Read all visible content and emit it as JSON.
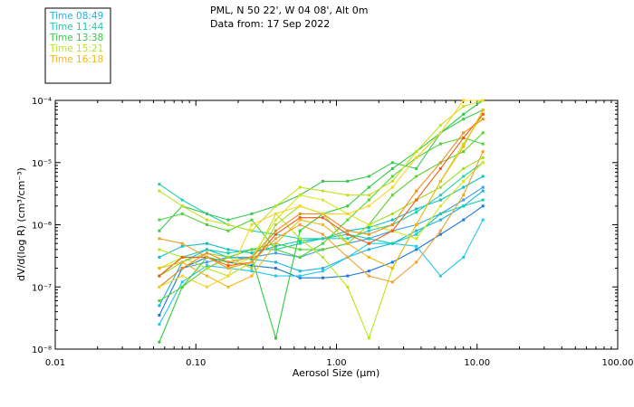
{
  "header": {
    "location": "PML, N 50 22', W 04 08', Alt 0m",
    "date": "Data from: 17 Sep 2022"
  },
  "legend": [
    {
      "label": "Time 08:49",
      "color": "#19b4e6"
    },
    {
      "label": "Time 11:44",
      "color": "#15cfaa"
    },
    {
      "label": "Time 13:38",
      "color": "#2ecc40"
    },
    {
      "label": "Time 15:21",
      "color": "#b8e61c"
    },
    {
      "label": "Time 16:18",
      "color": "#f6b512"
    }
  ],
  "chart_data": {
    "type": "line",
    "title": "",
    "xlabel": "Aerosol Size (µm)",
    "ylabel": "dV/d(log R) (cm³/cm⁻³)",
    "xscale": "log",
    "yscale": "log",
    "xlim": [
      0.01,
      100
    ],
    "ylim": [
      1e-08,
      0.0001
    ],
    "xticks": [
      0.01,
      0.1,
      1,
      10,
      100
    ],
    "xtick_labels": [
      "0.01",
      "0.10",
      "1.00",
      "10.00",
      "100.00"
    ],
    "yticks": [
      1e-08,
      1e-07,
      1e-06,
      1e-05,
      0.0001
    ],
    "ytick_labels": [
      "10⁻⁸",
      "10⁻⁷",
      "10⁻⁶",
      "10⁻⁵",
      "10⁻⁴"
    ],
    "x": [
      0.055,
      0.08,
      0.12,
      0.17,
      0.25,
      0.37,
      0.55,
      0.8,
      1.2,
      1.7,
      2.5,
      3.7,
      5.5,
      8.0,
      11.0
    ],
    "series": [
      {
        "name": "08:49 a",
        "color": "#1f77d4",
        "values": [
          3.5e-08,
          2e-07,
          3e-07,
          2.5e-07,
          2.2e-07,
          2e-07,
          1.4e-07,
          1.4e-07,
          1.5e-07,
          1.8e-07,
          2.5e-07,
          4e-07,
          7e-07,
          1.2e-06,
          2e-06
        ]
      },
      {
        "name": "08:49 b",
        "color": "#19b4e6",
        "values": [
          5e-08,
          2.5e-07,
          4e-07,
          3e-07,
          2.8e-07,
          2.5e-07,
          1.8e-07,
          2e-07,
          3e-07,
          4e-07,
          5e-07,
          8e-07,
          1.2e-06,
          2e-06,
          3.5e-06
        ]
      },
      {
        "name": "08:49 c",
        "color": "#22c8ee",
        "values": [
          2.5e-08,
          1.2e-07,
          2.2e-07,
          2e-07,
          1.8e-07,
          1.5e-07,
          1.5e-07,
          1.8e-07,
          3e-07,
          5e-07,
          5e-07,
          4.5e-07,
          1.5e-07,
          3e-07,
          1.2e-06
        ]
      },
      {
        "name": "08:49 d",
        "color": "#3aa0e0",
        "values": [
          1e-07,
          2e-07,
          2.5e-07,
          3e-07,
          3e-07,
          3.5e-07,
          3e-07,
          4e-07,
          5e-07,
          6e-07,
          8e-07,
          1e-06,
          1.5e-06,
          2.5e-06,
          4e-06
        ]
      },
      {
        "name": "11:44 a",
        "color": "#15cfaa",
        "values": [
          1.5e-07,
          3e-07,
          4e-07,
          3.5e-07,
          4e-07,
          4e-07,
          5e-07,
          6e-07,
          7e-07,
          6e-07,
          5e-07,
          7e-07,
          1.5e-06,
          2e-06,
          2.5e-06
        ]
      },
      {
        "name": "11:44 b",
        "color": "#10c0c0",
        "values": [
          3e-07,
          4.5e-07,
          5e-07,
          4e-07,
          3.5e-07,
          4.5e-07,
          5.5e-07,
          6e-07,
          8e-07,
          9e-07,
          1.2e-06,
          1.8e-06,
          2.5e-06,
          4e-06,
          6e-06
        ]
      },
      {
        "name": "11:44 c",
        "color": "#20d0b0",
        "values": [
          4.5e-06,
          2.5e-06,
          1.5e-06,
          1e-06,
          8e-07,
          7e-07,
          6e-07,
          6e-07,
          6e-07,
          8e-07,
          1e-06,
          1.6e-06,
          3e-06,
          6e-06,
          1e-05
        ]
      },
      {
        "name": "13:38 a",
        "color": "#2ecc40",
        "values": [
          1.3e-08,
          1e-07,
          3e-07,
          2.5e-07,
          3e-07,
          1.5e-08,
          8e-07,
          1.5e-06,
          2e-06,
          4e-06,
          8e-06,
          1.5e-05,
          3e-05,
          6e-05,
          0.0001
        ]
      },
      {
        "name": "13:38 b",
        "color": "#4cd438",
        "values": [
          1.2e-06,
          1.5e-06,
          1e-06,
          8e-07,
          1.2e-06,
          4e-07,
          3e-07,
          5e-07,
          1.2e-06,
          2.5e-06,
          6e-06,
          1.2e-05,
          2e-05,
          2.5e-05,
          2e-05
        ]
      },
      {
        "name": "13:38 c",
        "color": "#38c850",
        "values": [
          8e-07,
          2e-06,
          1.5e-06,
          1.2e-06,
          1.5e-06,
          2e-06,
          3e-06,
          5e-06,
          5e-06,
          6e-06,
          1e-05,
          8e-06,
          3e-05,
          5e-05,
          7e-05
        ]
      },
      {
        "name": "13:38 d",
        "color": "#5ad02e",
        "values": [
          6e-08,
          1e-07,
          2e-07,
          3e-07,
          4e-07,
          5e-07,
          4e-07,
          4e-07,
          5e-07,
          1e-06,
          3e-06,
          6e-06,
          1e-05,
          1.5e-05,
          3e-05
        ]
      },
      {
        "name": "15:21 a",
        "color": "#b8e61c",
        "values": [
          4e-07,
          3e-07,
          2e-07,
          1.5e-07,
          2.5e-07,
          1.5e-06,
          6e-07,
          3e-07,
          1e-07,
          1.5e-08,
          2e-07,
          1e-06,
          5e-06,
          2e-05,
          6e-05
        ]
      },
      {
        "name": "15:21 b",
        "color": "#9ede24",
        "values": [
          1.5e-07,
          2.5e-07,
          3.5e-07,
          3e-07,
          2e-07,
          1e-06,
          2e-06,
          1.5e-06,
          5e-07,
          1e-06,
          1.5e-06,
          2.5e-06,
          4e-06,
          8e-06,
          1.2e-05
        ]
      },
      {
        "name": "15:21 c",
        "color": "#d4e818",
        "values": [
          2e-07,
          3e-07,
          3e-07,
          2e-07,
          3e-07,
          1.2e-06,
          3e-06,
          2.5e-06,
          1.5e-06,
          1e-06,
          8e-07,
          6e-07,
          2e-06,
          5e-06,
          1e-05
        ]
      },
      {
        "name": "15:21 d",
        "color": "#c6e020",
        "values": [
          3.5e-06,
          2e-06,
          1.2e-06,
          1e-06,
          8e-07,
          2e-06,
          4e-06,
          3.5e-06,
          3e-06,
          3e-06,
          5e-06,
          1.5e-05,
          4e-05,
          8e-05,
          0.0001
        ]
      },
      {
        "name": "16:18 a",
        "color": "#ee5a18",
        "values": [
          1.5e-07,
          3e-07,
          3e-07,
          2.2e-07,
          2.5e-07,
          7e-07,
          1.3e-06,
          1.3e-06,
          7e-07,
          5e-07,
          8e-07,
          2.5e-06,
          8e-06,
          2.5e-05,
          6e-05
        ]
      },
      {
        "name": "16:18 b",
        "color": "#f28c18",
        "values": [
          1e-07,
          2e-07,
          3.5e-07,
          2.5e-07,
          3e-07,
          8e-07,
          1.5e-06,
          1.5e-06,
          8e-07,
          7e-07,
          1e-06,
          3.5e-06,
          1e-05,
          3e-05,
          5e-05
        ]
      },
      {
        "name": "16:18 c",
        "color": "#f6b512",
        "values": [
          2e-07,
          2.5e-07,
          1.5e-07,
          1e-07,
          1.5e-07,
          5e-07,
          1.2e-06,
          1e-06,
          5e-07,
          3e-07,
          2e-07,
          1e-06,
          5e-06,
          1.8e-05,
          7e-05
        ]
      },
      {
        "name": "16:18 d",
        "color": "#f8d424",
        "values": [
          1e-07,
          1.5e-07,
          1e-07,
          1.5e-07,
          1e-06,
          1.5e-06,
          2e-06,
          1.5e-06,
          1.5e-06,
          2e-06,
          4e-06,
          1.2e-05,
          3e-05,
          0.0001,
          0.0001
        ]
      },
      {
        "name": "16:18 e",
        "color": "#f2a030",
        "values": [
          6e-07,
          5e-07,
          3e-07,
          2e-07,
          2.5e-07,
          6e-07,
          1e-06,
          7e-07,
          3e-07,
          1.5e-07,
          1.2e-07,
          2.5e-07,
          8e-07,
          3e-06,
          1.5e-05
        ]
      }
    ]
  }
}
